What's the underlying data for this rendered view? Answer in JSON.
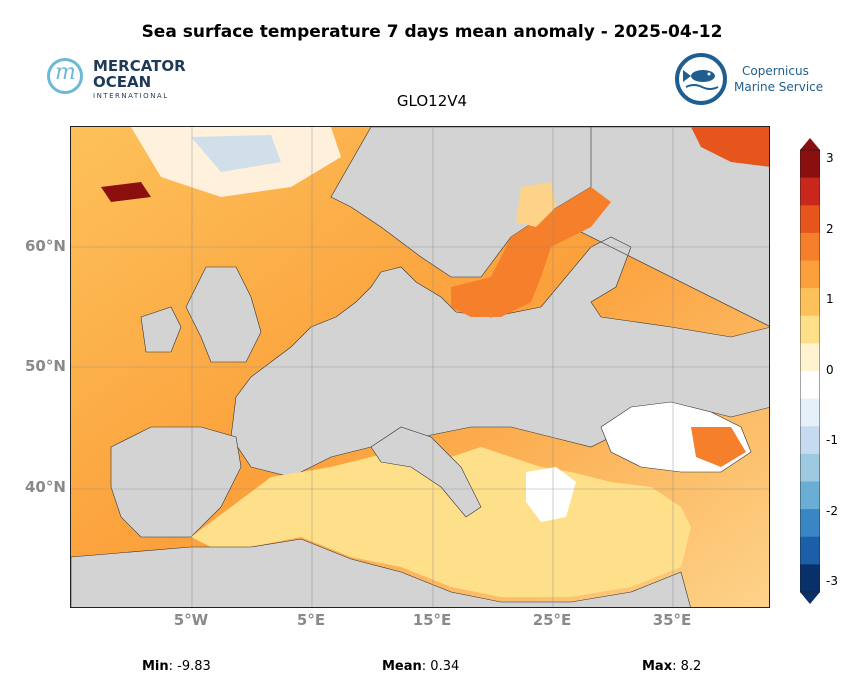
{
  "title": "Sea surface temperature 7 days mean anomaly - 2025-04-12",
  "subtitle": "GLO12V4",
  "logos": {
    "mercator": {
      "line1": "MERCATOR",
      "line2": "OCEAN",
      "line3": "INTERNATIONAL",
      "color": "#1f3a57",
      "accent": "#6bb9d6"
    },
    "copernicus": {
      "line1": "Copernicus",
      "line2": "Marine Service",
      "color": "#1f5f8f"
    }
  },
  "map": {
    "lat_labels": [
      "60°N",
      "50°N",
      "40°N"
    ],
    "lon_labels": [
      "5°W",
      "5°E",
      "15°E",
      "25°E",
      "35°E"
    ],
    "land_color": "#d3d3d3"
  },
  "colorbar": {
    "ticks": [
      "3",
      "2",
      "1",
      "0",
      "-1",
      "-2",
      "-3"
    ],
    "vmin": -3,
    "vmax": 3,
    "colors": [
      "#08306b",
      "#1c5fa8",
      "#3a86c4",
      "#6aaed6",
      "#9ecae1",
      "#c6dbef",
      "#e6f0f9",
      "#ffffff",
      "#fff3d0",
      "#fee08b",
      "#fdc15a",
      "#fca03b",
      "#f57f2a",
      "#e6551b",
      "#c9271c",
      "#8b0f0f"
    ]
  },
  "stats": {
    "min_label": "Min",
    "min_value": ": -9.83",
    "mean_label": "Mean",
    "mean_value": ": 0.34",
    "max_label": "Max",
    "max_value": ": 8.2"
  }
}
